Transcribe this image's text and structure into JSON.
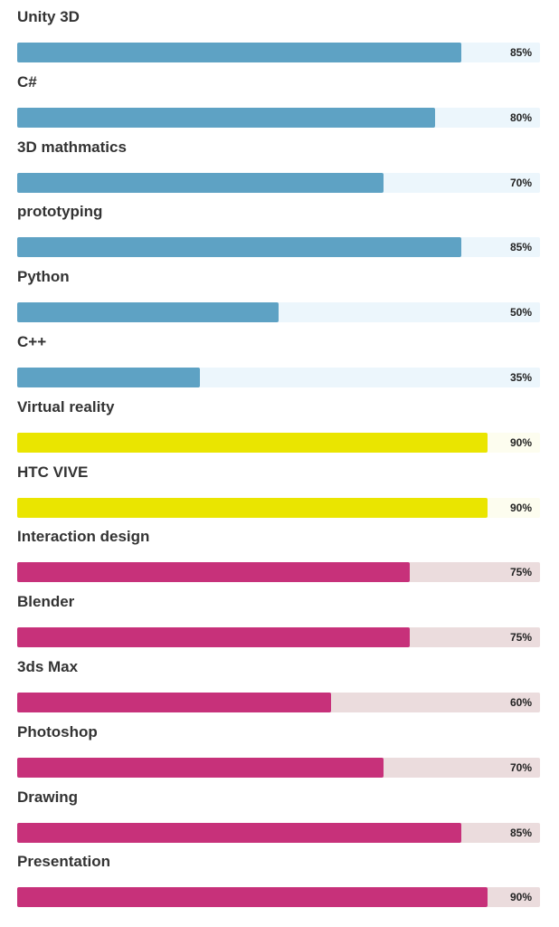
{
  "colors": {
    "blue_fill": "#5ea2c4",
    "blue_track": "#ecf6fc",
    "yellow_fill": "#eae500",
    "yellow_track": "#fdfdef",
    "pink_fill": "#c7317a",
    "pink_track": "#ebdcdd"
  },
  "skills": [
    {
      "label": "Unity 3D",
      "percent_text": "85%",
      "level": 0.85,
      "group": "blue"
    },
    {
      "label": "C#",
      "percent_text": "80%",
      "level": 0.8,
      "group": "blue"
    },
    {
      "label": "3D mathmatics",
      "percent_text": "70%",
      "level": 0.7,
      "group": "blue"
    },
    {
      "label": "prototyping",
      "percent_text": "85%",
      "level": 0.85,
      "group": "blue"
    },
    {
      "label": "Python",
      "percent_text": "50%",
      "level": 0.5,
      "group": "blue"
    },
    {
      "label": "C++",
      "percent_text": "35%",
      "level": 0.35,
      "group": "blue"
    },
    {
      "label": "Virtual reality",
      "percent_text": "90%",
      "level": 0.9,
      "group": "yellow"
    },
    {
      "label": "HTC VIVE",
      "percent_text": "90%",
      "level": 0.9,
      "group": "yellow"
    },
    {
      "label": "Interaction design",
      "percent_text": "75%",
      "level": 0.75,
      "group": "pink"
    },
    {
      "label": "Blender",
      "percent_text": "75%",
      "level": 0.75,
      "group": "pink"
    },
    {
      "label": "3ds Max",
      "percent_text": "60%",
      "level": 0.6,
      "group": "pink"
    },
    {
      "label": "Photoshop",
      "percent_text": "70%",
      "level": 0.7,
      "group": "pink"
    },
    {
      "label": "Drawing",
      "percent_text": "85%",
      "level": 0.85,
      "group": "pink"
    },
    {
      "label": "Presentation",
      "percent_text": "90%",
      "level": 0.9,
      "group": "pink"
    }
  ]
}
